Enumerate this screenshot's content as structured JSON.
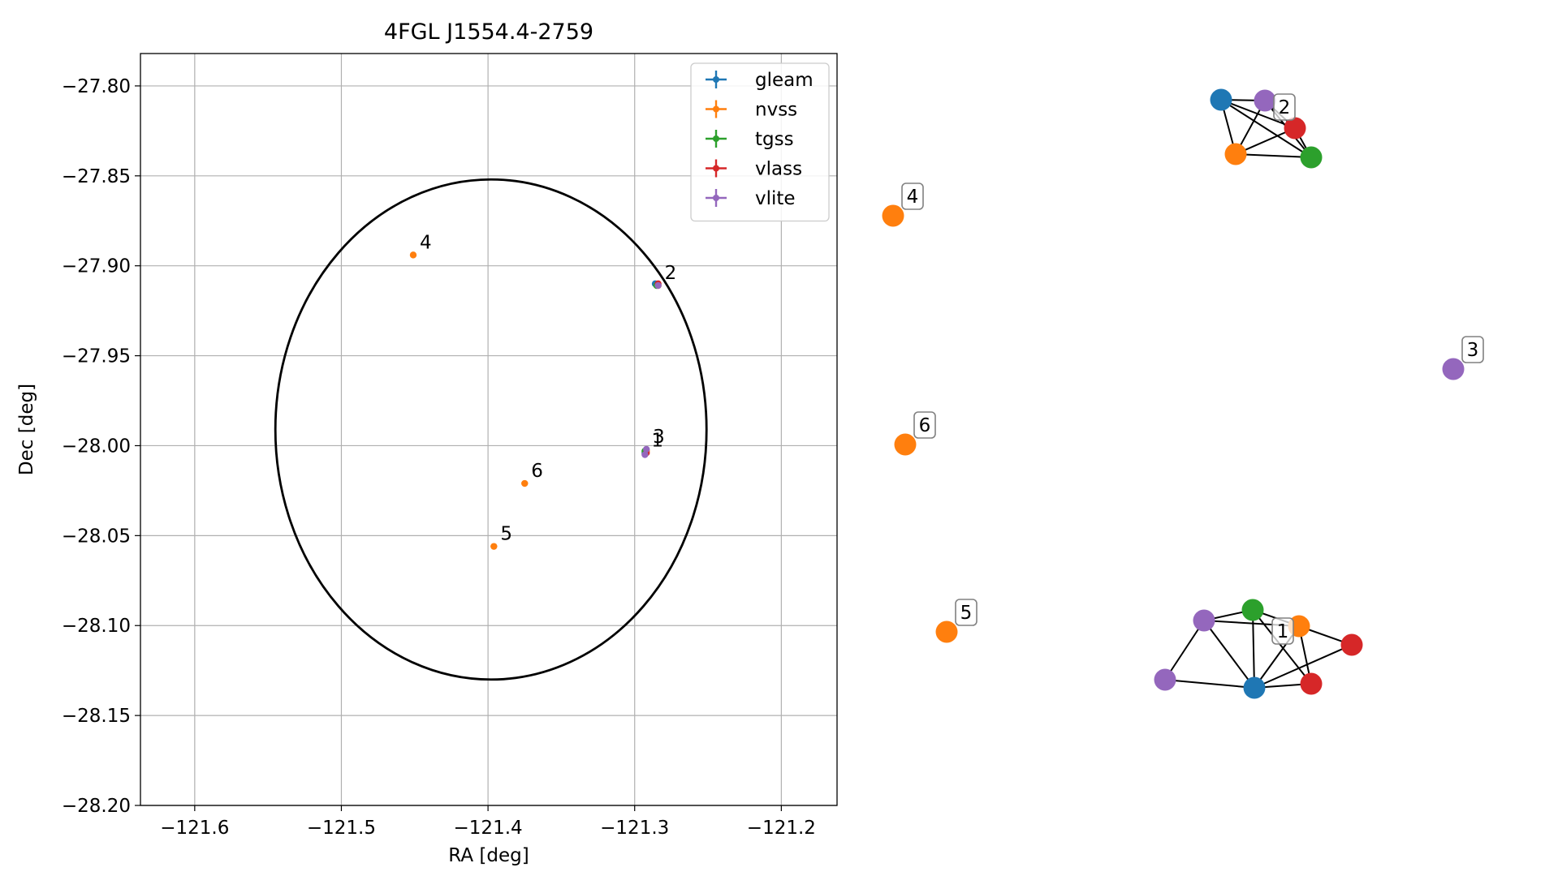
{
  "chart_data": [
    {
      "type": "scatter",
      "title": "4FGL J1554.4-2759",
      "xlabel": "RA [deg]",
      "ylabel": "Dec [deg]",
      "xlim": [
        -121.637,
        -121.162
      ],
      "ylim": [
        -28.2,
        -27.782
      ],
      "x_ticks": [
        -121.6,
        -121.5,
        -121.4,
        -121.3,
        -121.2
      ],
      "x_tick_labels": [
        "−121.6",
        "−121.5",
        "−121.4",
        "−121.3",
        "−121.2"
      ],
      "y_ticks": [
        -27.8,
        -27.85,
        -27.9,
        -27.95,
        -28.0,
        -28.05,
        -28.1,
        -28.15,
        -28.2
      ],
      "y_tick_labels": [
        "−27.80",
        "−27.85",
        "−27.90",
        "−27.95",
        "−28.00",
        "−28.05",
        "−28.10",
        "−28.15",
        "−28.20"
      ],
      "grid": true,
      "legend_placement": "upper right",
      "ellipse": {
        "center": [
          -121.398,
          -27.991
        ],
        "semi_axis_ra": 0.147,
        "semi_axis_dec": 0.139,
        "color": "#000000"
      },
      "series": [
        {
          "name": "gleam",
          "color": "#1f77b4",
          "points": [
            [
              -121.286,
              -27.91
            ],
            [
              -121.293,
              -28.004
            ]
          ]
        },
        {
          "name": "nvss",
          "color": "#ff7f0e",
          "points": [
            [
              -121.451,
              -27.894
            ],
            [
              -121.396,
              -28.056
            ],
            [
              -121.375,
              -28.021
            ],
            [
              -121.292,
              -28.003
            ],
            [
              -121.284,
              -27.911
            ]
          ]
        },
        {
          "name": "tgss",
          "color": "#2ca02c",
          "points": [
            [
              -121.285,
              -27.911
            ],
            [
              -121.293,
              -28.003
            ]
          ]
        },
        {
          "name": "vlass",
          "color": "#d62728",
          "points": [
            [
              -121.284,
              -27.91
            ],
            [
              -121.292,
              -28.004
            ]
          ]
        },
        {
          "name": "vlite",
          "color": "#9467bd",
          "points": [
            [
              -121.284,
              -27.911
            ],
            [
              -121.293,
              -28.005
            ],
            [
              -121.292,
              -28.002
            ]
          ]
        }
      ],
      "annotations": [
        {
          "text": "4",
          "x": -121.451,
          "y": -27.894
        },
        {
          "text": "2",
          "x": -121.284,
          "y": -27.911
        },
        {
          "text": "3",
          "x": -121.292,
          "y": -28.002
        },
        {
          "text": "1",
          "x": -121.293,
          "y": -28.004
        },
        {
          "text": "6",
          "x": -121.375,
          "y": -28.021
        },
        {
          "text": "5",
          "x": -121.396,
          "y": -28.056
        }
      ]
    },
    {
      "type": "network",
      "nodes": [
        {
          "id": "g2a",
          "color": "#1f77b4"
        },
        {
          "id": "v2a",
          "color": "#9467bd"
        },
        {
          "id": "r2a",
          "color": "#d62728"
        },
        {
          "id": "n2a",
          "color": "#ff7f0e"
        },
        {
          "id": "t2a",
          "color": "#2ca02c"
        },
        {
          "id": "n4",
          "color": "#ff7f0e"
        },
        {
          "id": "n6",
          "color": "#ff7f0e"
        },
        {
          "id": "n5",
          "color": "#ff7f0e"
        },
        {
          "id": "v3",
          "color": "#9467bd"
        },
        {
          "id": "t1",
          "color": "#2ca02c"
        },
        {
          "id": "v1a",
          "color": "#9467bd"
        },
        {
          "id": "n1",
          "color": "#ff7f0e"
        },
        {
          "id": "r1a",
          "color": "#d62728"
        },
        {
          "id": "v1b",
          "color": "#9467bd"
        },
        {
          "id": "g1",
          "color": "#1f77b4"
        },
        {
          "id": "r1b",
          "color": "#d62728"
        }
      ],
      "edges": [
        [
          "g2a",
          "v2a"
        ],
        [
          "g2a",
          "r2a"
        ],
        [
          "g2a",
          "n2a"
        ],
        [
          "g2a",
          "t2a"
        ],
        [
          "v2a",
          "r2a"
        ],
        [
          "v2a",
          "n2a"
        ],
        [
          "v2a",
          "t2a"
        ],
        [
          "r2a",
          "n2a"
        ],
        [
          "r2a",
          "t2a"
        ],
        [
          "n2a",
          "t2a"
        ],
        [
          "v1a",
          "t1"
        ],
        [
          "v1a",
          "n1"
        ],
        [
          "v1a",
          "g1"
        ],
        [
          "v1a",
          "v1b"
        ],
        [
          "t1",
          "n1"
        ],
        [
          "t1",
          "g1"
        ],
        [
          "t1",
          "r1b"
        ],
        [
          "n1",
          "g1"
        ],
        [
          "n1",
          "r1a"
        ],
        [
          "n1",
          "r1b"
        ],
        [
          "g1",
          "v1b"
        ],
        [
          "g1",
          "r1b"
        ],
        [
          "g1",
          "r1a"
        ]
      ],
      "labels": [
        {
          "text": "2",
          "node": "v2a"
        },
        {
          "text": "4",
          "node": "n4"
        },
        {
          "text": "6",
          "node": "n6"
        },
        {
          "text": "5",
          "node": "n5"
        },
        {
          "text": "3",
          "node": "v3"
        },
        {
          "text": "1",
          "node": "g1"
        }
      ]
    }
  ]
}
